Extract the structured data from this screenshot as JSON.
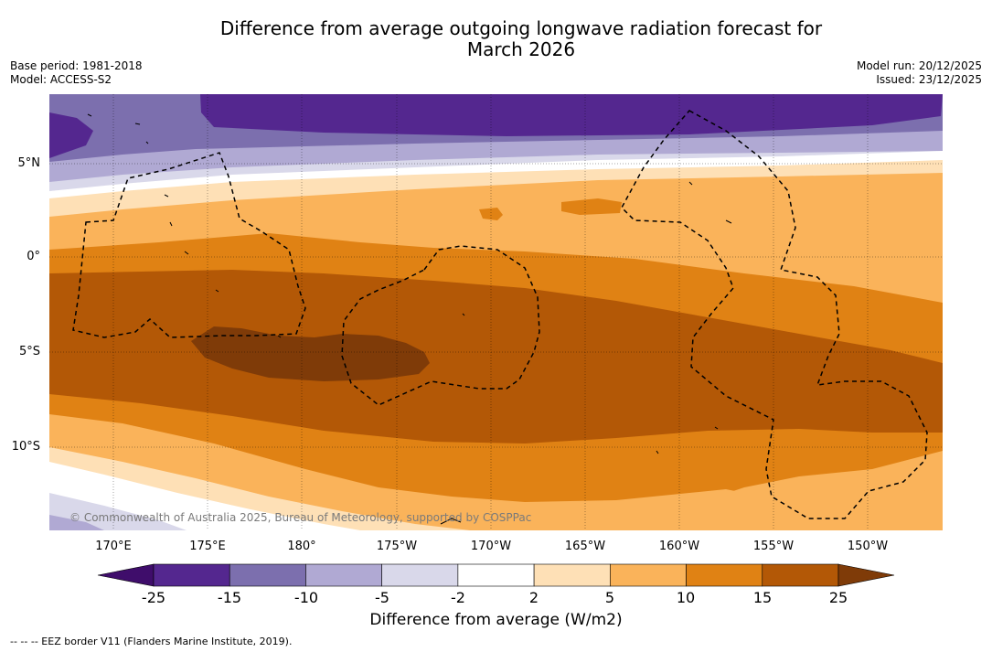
{
  "title": {
    "line1": "Difference from average outgoing longwave radiation forecast for",
    "line2": "March 2026"
  },
  "meta_left": {
    "base_period": "Base period: 1981-2018",
    "model": "Model: ACCESS-S2"
  },
  "meta_right": {
    "model_run": "Model run: 20/12/2025",
    "issued": "Issued: 23/12/2025"
  },
  "axes": {
    "lat_labels": [
      "5°N",
      "0°",
      "5°S",
      "10°S"
    ],
    "lon_labels": [
      "170°E",
      "175°E",
      "180°",
      "175°W",
      "170°W",
      "165°W",
      "160°W",
      "155°W",
      "150°W"
    ]
  },
  "map": {
    "copyright": "© Commonwealth of Australia 2025, Bureau of Meteorology, supported by COSPPac"
  },
  "colorbar": {
    "ticks": [
      "-25",
      "-15",
      "-10",
      "-5",
      "-2",
      "2",
      "5",
      "10",
      "15",
      "25"
    ],
    "colors": [
      "#3f0d6b",
      "#54278f",
      "#7c6fae",
      "#b0a9d3",
      "#d9d8ea",
      "#ffffff",
      "#fee0b6",
      "#fab35a",
      "#e08214",
      "#b35806",
      "#7f3b08"
    ],
    "label": "Difference from average (W/m2)"
  },
  "footer": "--  --  -- EEZ border V11 (Flanders Marine Institute, 2019)."
}
